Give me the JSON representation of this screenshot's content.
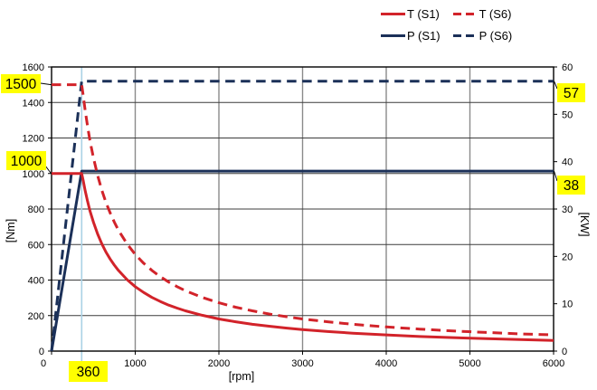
{
  "chart_data": {
    "type": "line",
    "title": "",
    "x_axis": {
      "label": "[rpm]",
      "min": 0,
      "max": 6000,
      "ticks": [
        0,
        1000,
        2000,
        3000,
        4000,
        5000,
        6000
      ]
    },
    "y_left": {
      "label": "[Nm]",
      "min": 0,
      "max": 1600,
      "ticks": [
        0,
        200,
        400,
        600,
        800,
        1000,
        1200,
        1400,
        1600
      ]
    },
    "y_right": {
      "label": "[KW]",
      "min": 0,
      "max": 60,
      "ticks": [
        0,
        10,
        20,
        30,
        40,
        50,
        60
      ]
    },
    "grid": true,
    "legend_position": "top-right",
    "legend": [
      {
        "label": "T (S1)",
        "color": "#d2232a",
        "dash": "solid"
      },
      {
        "label": "T (S6)",
        "color": "#d2232a",
        "dash": "dashed"
      },
      {
        "label": "P (S1)",
        "color": "#1b3058",
        "dash": "solid"
      },
      {
        "label": "P (S6)",
        "color": "#1b3058",
        "dash": "dashed"
      }
    ],
    "series": [
      {
        "name": "P (S6)",
        "axis": "right",
        "unit": "KW",
        "color": "#1b3058",
        "dash": "dashed",
        "points": [
          [
            0,
            0
          ],
          [
            360,
            57
          ],
          [
            6000,
            57
          ]
        ]
      },
      {
        "name": "P (S1)",
        "axis": "right",
        "unit": "KW",
        "color": "#1b3058",
        "dash": "solid",
        "points": [
          [
            0,
            0
          ],
          [
            360,
            38
          ],
          [
            6000,
            38
          ]
        ]
      },
      {
        "name": "T (S6)",
        "axis": "left",
        "unit": "Nm",
        "color": "#d2232a",
        "dash": "dashed",
        "points": [
          [
            0,
            1500
          ],
          [
            360,
            1500
          ],
          [
            380,
            1432
          ],
          [
            400,
            1361
          ],
          [
            430,
            1266
          ],
          [
            460,
            1183
          ],
          [
            500,
            1089
          ],
          [
            550,
            990
          ],
          [
            600,
            907
          ],
          [
            650,
            837
          ],
          [
            700,
            778
          ],
          [
            750,
            726
          ],
          [
            800,
            680
          ],
          [
            900,
            605
          ],
          [
            1000,
            544
          ],
          [
            1100,
            495
          ],
          [
            1200,
            454
          ],
          [
            1300,
            419
          ],
          [
            1400,
            389
          ],
          [
            1500,
            363
          ],
          [
            1600,
            340
          ],
          [
            1800,
            302
          ],
          [
            2000,
            272
          ],
          [
            2200,
            247
          ],
          [
            2400,
            227
          ],
          [
            2600,
            209
          ],
          [
            2800,
            194
          ],
          [
            3000,
            181
          ],
          [
            3300,
            165
          ],
          [
            3600,
            151
          ],
          [
            4000,
            136
          ],
          [
            4400,
            124
          ],
          [
            4800,
            113
          ],
          [
            5200,
            105
          ],
          [
            5600,
            97
          ],
          [
            6000,
            91
          ]
        ]
      },
      {
        "name": "T (S1)",
        "axis": "left",
        "unit": "Nm",
        "color": "#d2232a",
        "dash": "solid",
        "points": [
          [
            0,
            1000
          ],
          [
            360,
            1000
          ],
          [
            380,
            955
          ],
          [
            400,
            907
          ],
          [
            430,
            844
          ],
          [
            460,
            789
          ],
          [
            500,
            726
          ],
          [
            550,
            660
          ],
          [
            600,
            605
          ],
          [
            650,
            558
          ],
          [
            700,
            518
          ],
          [
            750,
            484
          ],
          [
            800,
            454
          ],
          [
            900,
            403
          ],
          [
            1000,
            363
          ],
          [
            1100,
            330
          ],
          [
            1200,
            302
          ],
          [
            1300,
            279
          ],
          [
            1400,
            259
          ],
          [
            1500,
            242
          ],
          [
            1600,
            227
          ],
          [
            1800,
            202
          ],
          [
            2000,
            181
          ],
          [
            2200,
            165
          ],
          [
            2400,
            151
          ],
          [
            2600,
            140
          ],
          [
            2800,
            130
          ],
          [
            3000,
            121
          ],
          [
            3300,
            110
          ],
          [
            3600,
            101
          ],
          [
            4000,
            91
          ],
          [
            4400,
            82
          ],
          [
            4800,
            76
          ],
          [
            5200,
            70
          ],
          [
            5600,
            65
          ],
          [
            6000,
            60
          ]
        ]
      }
    ],
    "marker_line": {
      "x": 360,
      "color": "#aad2e6"
    },
    "annotations": [
      {
        "label": "1500",
        "axis": "left",
        "value": 1500
      },
      {
        "label": "1000",
        "axis": "left",
        "value": 1000
      },
      {
        "label": "57",
        "axis": "right",
        "value": 57
      },
      {
        "label": "38",
        "axis": "right",
        "value": 38
      },
      {
        "label": "360",
        "axis": "x",
        "value": 360
      }
    ],
    "colors": {
      "highlight": "#ffff00",
      "grid_horizontal": "#3c3c3c",
      "grid_vertical": "#8a8a8a",
      "frame": "#000000",
      "red": "#d2232a",
      "navy": "#1b3058"
    }
  }
}
